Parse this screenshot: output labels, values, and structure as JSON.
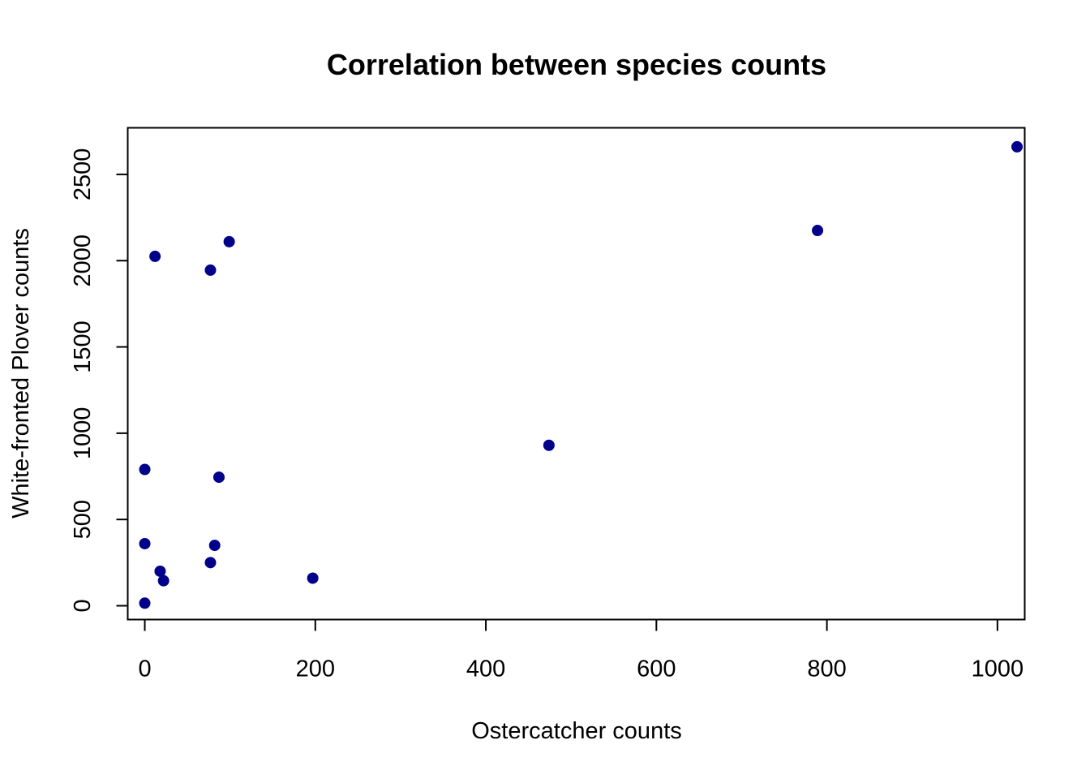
{
  "chart_data": {
    "type": "scatter",
    "title": "Correlation between species counts",
    "xlabel": "Ostercatcher counts",
    "ylabel": "White-fronted Plover counts",
    "xlim": [
      -20,
      1032
    ],
    "ylim": [
      -80,
      2770
    ],
    "x_ticks": [
      0,
      200,
      400,
      600,
      800,
      1000
    ],
    "y_ticks": [
      0,
      500,
      1000,
      1500,
      2000,
      2500
    ],
    "point_color": "#00008B",
    "grid": false,
    "legend": "none",
    "points": [
      {
        "x": 0,
        "y": 15
      },
      {
        "x": 0,
        "y": 360
      },
      {
        "x": 0,
        "y": 790
      },
      {
        "x": 12,
        "y": 2025
      },
      {
        "x": 18,
        "y": 200
      },
      {
        "x": 22,
        "y": 145
      },
      {
        "x": 77,
        "y": 250
      },
      {
        "x": 77,
        "y": 1945
      },
      {
        "x": 82,
        "y": 350
      },
      {
        "x": 87,
        "y": 745
      },
      {
        "x": 99,
        "y": 2110
      },
      {
        "x": 197,
        "y": 160
      },
      {
        "x": 474,
        "y": 930
      },
      {
        "x": 789,
        "y": 2175
      },
      {
        "x": 1023,
        "y": 2660
      }
    ]
  }
}
